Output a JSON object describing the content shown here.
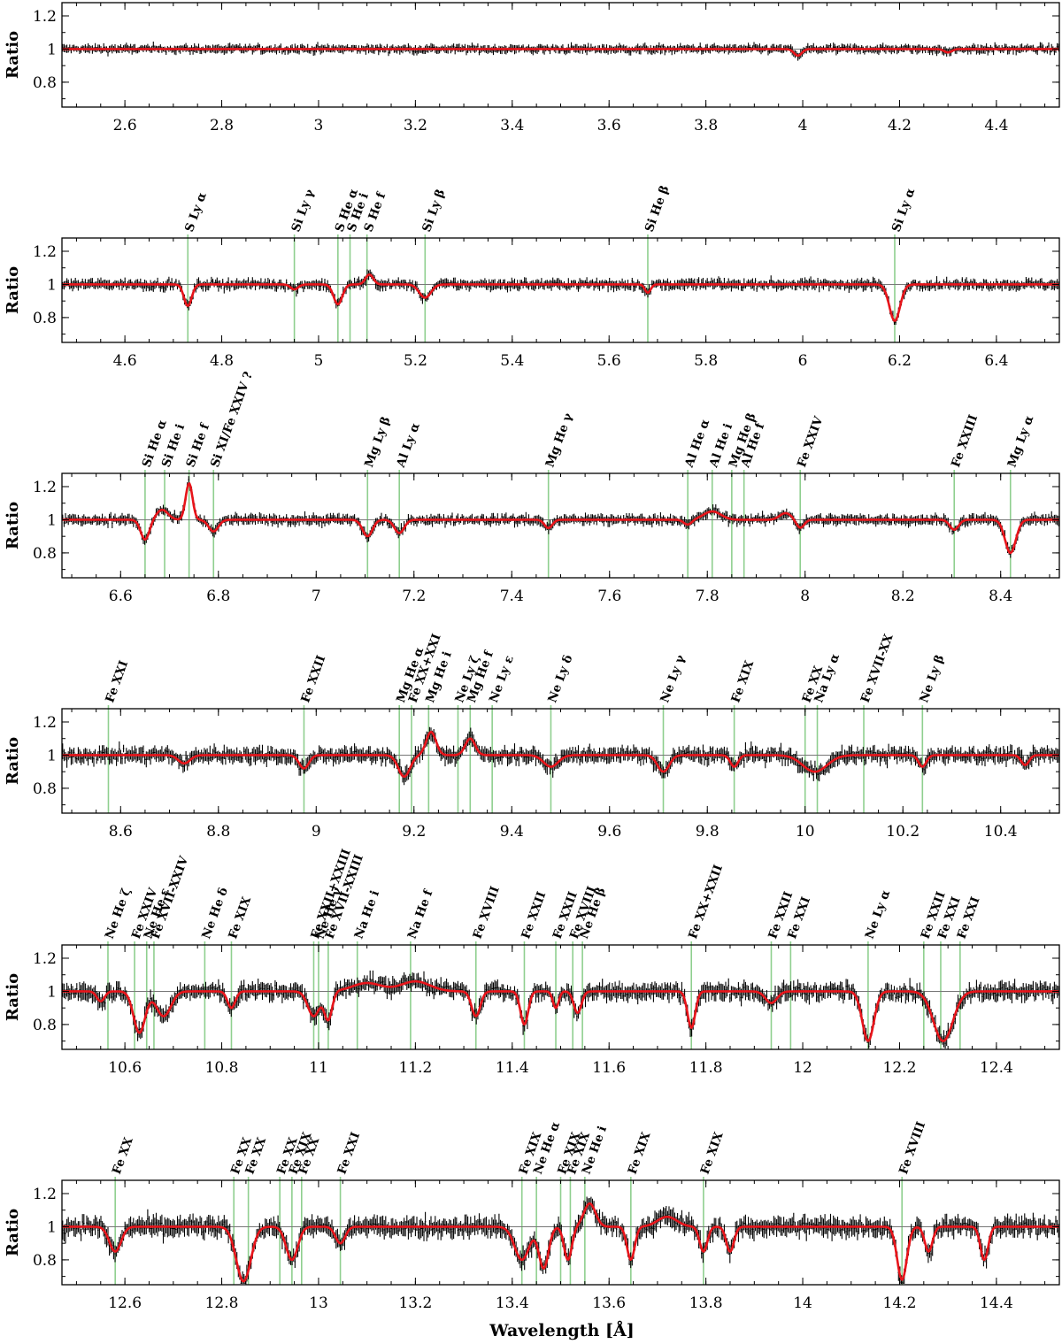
{
  "chart_data": {
    "type": "line",
    "xlabel": "Wavelength [Å]",
    "ylabel": "Ratio",
    "reference_value": 1,
    "colors": {
      "data": "#000000",
      "model": "#e8141a",
      "line_ids": "#8fcf8f",
      "reference": "#777777"
    },
    "panels": [
      {
        "xlim": [
          2.47,
          4.53
        ],
        "ylim": [
          0.65,
          1.28
        ],
        "xticks": [
          2.6,
          2.8,
          3,
          3.2,
          3.4,
          3.6,
          3.8,
          4,
          4.2,
          4.4
        ],
        "yticks": [
          0.8,
          1,
          1.2
        ],
        "lines": [],
        "absorption_features": [
          {
            "center": 3.99,
            "depth": 0.04,
            "width": 0.008
          },
          {
            "center": 4.3,
            "depth": 0.02,
            "width": 0.008
          }
        ],
        "emission_features": [],
        "noise": 0.025,
        "segments": 180
      },
      {
        "xlim": [
          4.47,
          6.53
        ],
        "ylim": [
          0.65,
          1.28
        ],
        "xticks": [
          4.6,
          4.8,
          5,
          5.2,
          5.4,
          5.6,
          5.8,
          6,
          6.2,
          6.4
        ],
        "yticks": [
          0.8,
          1,
          1.2
        ],
        "lines": [
          {
            "wl": 4.73,
            "label": "S Ly α"
          },
          {
            "wl": 4.95,
            "label": "Si Ly γ"
          },
          {
            "wl": 5.04,
            "label": "S He α"
          },
          {
            "wl": 5.065,
            "label": "S He i"
          },
          {
            "wl": 5.1,
            "label": "S He f"
          },
          {
            "wl": 5.22,
            "label": "Si Ly β"
          },
          {
            "wl": 5.68,
            "label": "Si He β"
          },
          {
            "wl": 6.19,
            "label": "Si Ly α"
          }
        ],
        "absorption_features": [
          {
            "center": 4.73,
            "depth": 0.13,
            "width": 0.008
          },
          {
            "center": 4.95,
            "depth": 0.03,
            "width": 0.008
          },
          {
            "center": 5.04,
            "depth": 0.12,
            "width": 0.009
          },
          {
            "center": 5.22,
            "depth": 0.08,
            "width": 0.012
          },
          {
            "center": 5.68,
            "depth": 0.05,
            "width": 0.006
          },
          {
            "center": 6.19,
            "depth": 0.22,
            "width": 0.011
          }
        ],
        "emission_features": [
          {
            "center": 5.105,
            "height": 0.06,
            "width": 0.008
          }
        ],
        "noise": 0.03,
        "segments": 180
      },
      {
        "xlim": [
          6.48,
          8.52
        ],
        "ylim": [
          0.65,
          1.28
        ],
        "xticks": [
          6.6,
          6.8,
          7,
          7.2,
          7.4,
          7.6,
          7.8,
          8,
          8.2,
          8.4
        ],
        "yticks": [
          0.8,
          1,
          1.2
        ],
        "lines": [
          {
            "wl": 6.65,
            "label": "Si He α"
          },
          {
            "wl": 6.69,
            "label": "Si He i"
          },
          {
            "wl": 6.74,
            "label": "Si He f"
          },
          {
            "wl": 6.79,
            "label": "Si XI/Fe XXIV ?"
          },
          {
            "wl": 7.105,
            "label": "Mg Ly β"
          },
          {
            "wl": 7.17,
            "label": "Al Ly α"
          },
          {
            "wl": 7.475,
            "label": "Mg He γ"
          },
          {
            "wl": 7.76,
            "label": "Al He α"
          },
          {
            "wl": 7.81,
            "label": "Al He i"
          },
          {
            "wl": 7.85,
            "label": "Mg He β"
          },
          {
            "wl": 7.875,
            "label": "Al He f"
          },
          {
            "wl": 7.99,
            "label": "Fe XXIV"
          },
          {
            "wl": 8.305,
            "label": "Fe XXIII"
          },
          {
            "wl": 8.42,
            "label": "Mg Ly α"
          }
        ],
        "absorption_features": [
          {
            "center": 6.65,
            "depth": 0.12,
            "width": 0.009
          },
          {
            "center": 6.79,
            "depth": 0.07,
            "width": 0.01
          },
          {
            "center": 7.105,
            "depth": 0.1,
            "width": 0.01
          },
          {
            "center": 7.17,
            "depth": 0.08,
            "width": 0.01
          },
          {
            "center": 7.475,
            "depth": 0.05,
            "width": 0.008
          },
          {
            "center": 7.76,
            "depth": 0.03,
            "width": 0.008
          },
          {
            "center": 7.99,
            "depth": 0.05,
            "width": 0.008
          },
          {
            "center": 8.305,
            "depth": 0.06,
            "width": 0.009
          },
          {
            "center": 8.42,
            "depth": 0.2,
            "width": 0.011
          }
        ],
        "emission_features": [
          {
            "center": 6.685,
            "height": 0.06,
            "width": 0.012
          },
          {
            "center": 6.74,
            "height": 0.22,
            "width": 0.007
          },
          {
            "center": 7.81,
            "height": 0.05,
            "width": 0.018
          },
          {
            "center": 7.96,
            "height": 0.04,
            "width": 0.012
          }
        ],
        "noise": 0.03,
        "segments": 180
      },
      {
        "xlim": [
          8.48,
          10.52
        ],
        "ylim": [
          0.65,
          1.28
        ],
        "xticks": [
          8.6,
          8.8,
          9,
          9.2,
          9.4,
          9.6,
          9.8,
          10,
          10.2,
          10.4
        ],
        "yticks": [
          0.8,
          1,
          1.2
        ],
        "lines": [
          {
            "wl": 8.575,
            "label": "Fe XXI"
          },
          {
            "wl": 8.975,
            "label": "Fe XXII"
          },
          {
            "wl": 9.17,
            "label": "Mg He α"
          },
          {
            "wl": 9.195,
            "label": "Fe XX+XXI"
          },
          {
            "wl": 9.23,
            "label": "Mg He i"
          },
          {
            "wl": 9.29,
            "label": "Ne Ly ζ"
          },
          {
            "wl": 9.315,
            "label": "Mg He f"
          },
          {
            "wl": 9.36,
            "label": "Ne Ly ε"
          },
          {
            "wl": 9.48,
            "label": "Ne Ly δ"
          },
          {
            "wl": 9.71,
            "label": "Ne Ly γ"
          },
          {
            "wl": 9.855,
            "label": "Fe XIX"
          },
          {
            "wl": 10.0,
            "label": "Fe XX"
          },
          {
            "wl": 10.025,
            "label": "Na Ly α"
          },
          {
            "wl": 10.12,
            "label": "Fe XVII-XX"
          },
          {
            "wl": 10.24,
            "label": "Ne Ly β"
          }
        ],
        "absorption_features": [
          {
            "center": 8.73,
            "depth": 0.05,
            "width": 0.012
          },
          {
            "center": 8.975,
            "depth": 0.08,
            "width": 0.01
          },
          {
            "center": 9.18,
            "depth": 0.13,
            "width": 0.012
          },
          {
            "center": 9.48,
            "depth": 0.07,
            "width": 0.015
          },
          {
            "center": 9.71,
            "depth": 0.1,
            "width": 0.012
          },
          {
            "center": 9.855,
            "depth": 0.07,
            "width": 0.008
          },
          {
            "center": 10.02,
            "depth": 0.1,
            "width": 0.025
          },
          {
            "center": 10.24,
            "depth": 0.07,
            "width": 0.008
          },
          {
            "center": 10.45,
            "depth": 0.06,
            "width": 0.008
          }
        ],
        "emission_features": [
          {
            "center": 9.235,
            "height": 0.14,
            "width": 0.01
          },
          {
            "center": 9.315,
            "height": 0.1,
            "width": 0.01
          }
        ],
        "noise": 0.045,
        "segments": 180
      },
      {
        "xlim": [
          10.47,
          12.53
        ],
        "ylim": [
          0.65,
          1.28
        ],
        "xticks": [
          10.6,
          10.8,
          11,
          11.2,
          11.4,
          11.6,
          11.8,
          12,
          12.2,
          12.4
        ],
        "yticks": [
          0.8,
          1,
          1.2
        ],
        "lines": [
          {
            "wl": 10.565,
            "label": "Ne He ζ"
          },
          {
            "wl": 10.62,
            "label": "Fe XXIV"
          },
          {
            "wl": 10.645,
            "label": "Ne He ε"
          },
          {
            "wl": 10.66,
            "label": "Fe XVII-XXIV"
          },
          {
            "wl": 10.765,
            "label": "Ne He δ"
          },
          {
            "wl": 10.82,
            "label": "Fe XIX"
          },
          {
            "wl": 10.99,
            "label": "Fe XXII+XXIII"
          },
          {
            "wl": 11.0,
            "label": "Ne He γ"
          },
          {
            "wl": 11.02,
            "label": "Fe XVII-XXIII"
          },
          {
            "wl": 11.08,
            "label": "Na He i"
          },
          {
            "wl": 11.19,
            "label": "Na He f"
          },
          {
            "wl": 11.325,
            "label": "Fe XVIII"
          },
          {
            "wl": 11.425,
            "label": "Fe XXII"
          },
          {
            "wl": 11.49,
            "label": "Fe XXII"
          },
          {
            "wl": 11.525,
            "label": "Fe XVIII"
          },
          {
            "wl": 11.545,
            "label": "Ne He β"
          },
          {
            "wl": 11.77,
            "label": "Fe XX+XXII"
          },
          {
            "wl": 11.935,
            "label": "Fe XXII"
          },
          {
            "wl": 11.975,
            "label": "Fe XXI"
          },
          {
            "wl": 12.135,
            "label": "Ne Ly α"
          },
          {
            "wl": 12.25,
            "label": "Fe XXII"
          },
          {
            "wl": 12.285,
            "label": "Fe XXI"
          },
          {
            "wl": 12.325,
            "label": "Fe XXI"
          }
        ],
        "absorption_features": [
          {
            "center": 10.55,
            "depth": 0.06,
            "width": 0.008
          },
          {
            "center": 10.63,
            "depth": 0.25,
            "width": 0.012
          },
          {
            "center": 10.68,
            "depth": 0.15,
            "width": 0.015
          },
          {
            "center": 10.82,
            "depth": 0.1,
            "width": 0.008
          },
          {
            "center": 10.99,
            "depth": 0.15,
            "width": 0.012
          },
          {
            "center": 11.02,
            "depth": 0.17,
            "width": 0.008
          },
          {
            "center": 11.325,
            "depth": 0.15,
            "width": 0.009
          },
          {
            "center": 11.425,
            "depth": 0.2,
            "width": 0.008
          },
          {
            "center": 11.49,
            "depth": 0.1,
            "width": 0.006
          },
          {
            "center": 11.535,
            "depth": 0.13,
            "width": 0.008
          },
          {
            "center": 11.77,
            "depth": 0.22,
            "width": 0.008
          },
          {
            "center": 11.935,
            "depth": 0.07,
            "width": 0.012
          },
          {
            "center": 12.135,
            "depth": 0.3,
            "width": 0.012
          },
          {
            "center": 12.29,
            "depth": 0.3,
            "width": 0.02
          }
        ],
        "emission_features": [
          {
            "center": 11.1,
            "height": 0.05,
            "width": 0.03
          },
          {
            "center": 11.2,
            "height": 0.06,
            "width": 0.03
          }
        ],
        "noise": 0.05,
        "segments": 180
      },
      {
        "xlim": [
          12.47,
          14.53
        ],
        "ylim": [
          0.65,
          1.28
        ],
        "xticks": [
          12.6,
          12.8,
          13,
          13.2,
          13.4,
          13.6,
          13.8,
          14,
          14.2,
          14.4
        ],
        "yticks": [
          0.8,
          1,
          1.2
        ],
        "lines": [
          {
            "wl": 12.58,
            "label": "Fe XX"
          },
          {
            "wl": 12.825,
            "label": "Fe XX"
          },
          {
            "wl": 12.855,
            "label": "Fe XX"
          },
          {
            "wl": 12.92,
            "label": "Fe XX"
          },
          {
            "wl": 12.945,
            "label": "Fe XIX"
          },
          {
            "wl": 12.965,
            "label": "Fe XX"
          },
          {
            "wl": 13.045,
            "label": "Fe XXI"
          },
          {
            "wl": 13.42,
            "label": "Fe XIX"
          },
          {
            "wl": 13.45,
            "label": "Ne He α"
          },
          {
            "wl": 13.5,
            "label": "Fe XIX"
          },
          {
            "wl": 13.52,
            "label": "Fe XIX"
          },
          {
            "wl": 13.55,
            "label": "Ne He i"
          },
          {
            "wl": 13.645,
            "label": "Fe XIX"
          },
          {
            "wl": 13.795,
            "label": "Fe XIX"
          },
          {
            "wl": 14.205,
            "label": "Fe XVIII"
          }
        ],
        "absorption_features": [
          {
            "center": 12.58,
            "depth": 0.15,
            "width": 0.012
          },
          {
            "center": 12.845,
            "depth": 0.33,
            "width": 0.015
          },
          {
            "center": 12.945,
            "depth": 0.2,
            "width": 0.012
          },
          {
            "center": 13.045,
            "depth": 0.1,
            "width": 0.01
          },
          {
            "center": 13.42,
            "depth": 0.2,
            "width": 0.015
          },
          {
            "center": 13.465,
            "depth": 0.25,
            "width": 0.01
          },
          {
            "center": 13.515,
            "depth": 0.2,
            "width": 0.008
          },
          {
            "center": 13.645,
            "depth": 0.2,
            "width": 0.008
          },
          {
            "center": 13.795,
            "depth": 0.15,
            "width": 0.008
          },
          {
            "center": 13.85,
            "depth": 0.15,
            "width": 0.008
          },
          {
            "center": 14.205,
            "depth": 0.32,
            "width": 0.01
          },
          {
            "center": 14.26,
            "depth": 0.15,
            "width": 0.008
          },
          {
            "center": 14.375,
            "depth": 0.2,
            "width": 0.008
          }
        ],
        "emission_features": [
          {
            "center": 13.56,
            "height": 0.14,
            "width": 0.012
          },
          {
            "center": 13.72,
            "height": 0.06,
            "width": 0.02
          }
        ],
        "noise": 0.055,
        "segments": 180
      }
    ]
  }
}
